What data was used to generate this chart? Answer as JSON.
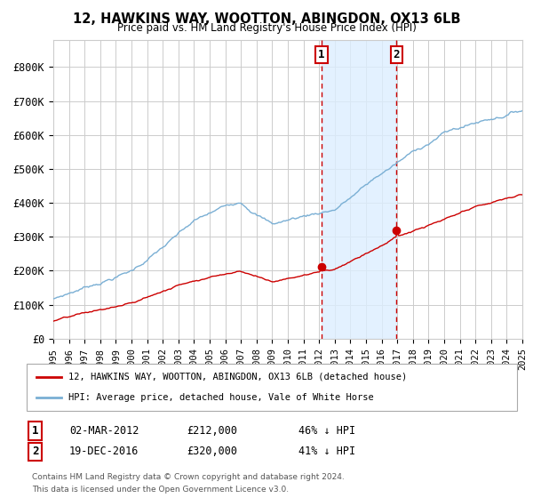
{
  "title": "12, HAWKINS WAY, WOOTTON, ABINGDON, OX13 6LB",
  "subtitle": "Price paid vs. HM Land Registry's House Price Index (HPI)",
  "legend_label_red": "12, HAWKINS WAY, WOOTTON, ABINGDON, OX13 6LB (detached house)",
  "legend_label_blue": "HPI: Average price, detached house, Vale of White Horse",
  "annotation1_label": "1",
  "annotation1_date": "02-MAR-2012",
  "annotation1_price": "£212,000",
  "annotation1_hpi": "46% ↓ HPI",
  "annotation2_label": "2",
  "annotation2_date": "19-DEC-2016",
  "annotation2_price": "£320,000",
  "annotation2_hpi": "41% ↓ HPI",
  "sale1_x": 2012.16,
  "sale1_y": 212000,
  "sale2_x": 2016.96,
  "sale2_y": 320000,
  "xmin": 1995,
  "xmax": 2025,
  "ymin": 0,
  "ymax": 880000,
  "yticks": [
    0,
    100000,
    200000,
    300000,
    400000,
    500000,
    600000,
    700000,
    800000
  ],
  "background_color": "#ffffff",
  "plot_bg_color": "#ffffff",
  "grid_color": "#cccccc",
  "red_color": "#cc0000",
  "blue_color": "#7aafd4",
  "shade_color": "#ddeeff",
  "dashed_line_color": "#cc0000",
  "footnote_line1": "Contains HM Land Registry data © Crown copyright and database right 2024.",
  "footnote_line2": "This data is licensed under the Open Government Licence v3.0."
}
